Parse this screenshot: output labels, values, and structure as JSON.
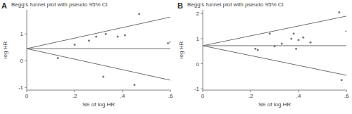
{
  "chart_data": [
    {
      "type": "scatter",
      "title": "Begg's funnel plot with pseudo 95% CI",
      "annotations": [
        "A"
      ],
      "x_label": "SE of log HR",
      "y_label": "log HR",
      "xlim": [
        0,
        0.6
      ],
      "xticks": [
        0,
        {
          "value": 0.2,
          "label": ".2"
        },
        {
          "value": 0.4,
          "label": ".4"
        },
        {
          "value": 0.6,
          "label": ".6"
        }
      ],
      "ylim": [
        -1.1,
        1.9
      ],
      "yticks": [
        -1,
        0,
        1
      ],
      "series": [
        {
          "type": "scatter",
          "color": "#7a7a7a",
          "marker": "circle",
          "x": [
            0.13,
            0.2,
            0.26,
            0.29,
            0.32,
            0.33,
            0.38,
            0.41,
            0.45,
            0.47,
            0.59,
            0.6
          ],
          "values": [
            0.1,
            0.6,
            0.75,
            0.9,
            -0.6,
            1.0,
            0.9,
            0.95,
            -0.9,
            1.75,
            0.65,
            0.7
          ]
        },
        {
          "type": "line",
          "color": "#6e6e6e",
          "line_style": "solid",
          "x": [
            0,
            0.6
          ],
          "values": [
            0.45,
            0.45
          ]
        },
        {
          "type": "line",
          "color": "#6e6e6e",
          "line_style": "solid",
          "x": [
            0,
            0.6
          ],
          "values": [
            0.45,
            1.63
          ]
        },
        {
          "type": "line",
          "color": "#6e6e6e",
          "line_style": "solid",
          "x": [
            0,
            0.6
          ],
          "values": [
            0.45,
            -0.73
          ]
        }
      ]
    },
    {
      "type": "scatter",
      "title": "Begg's funnel plot with pseudo 95% CI",
      "annotations": [
        "B"
      ],
      "x_label": "SE of log HR",
      "y_label": "log HR",
      "xlim": [
        0,
        0.6
      ],
      "xticks": [
        0,
        {
          "value": 0.2,
          "label": ".2"
        },
        {
          "value": 0.4,
          "label": ".4"
        },
        {
          "value": 0.6,
          "label": ".6"
        }
      ],
      "ylim": [
        -1.05,
        2.15
      ],
      "yticks": [
        -1,
        0,
        1,
        2
      ],
      "series": [
        {
          "type": "scatter",
          "color": "#7a7a7a",
          "marker": "circle",
          "x": [
            0.22,
            0.23,
            0.28,
            0.3,
            0.33,
            0.37,
            0.38,
            0.39,
            0.4,
            0.42,
            0.45,
            0.57,
            0.58,
            0.6
          ],
          "values": [
            0.6,
            0.55,
            1.2,
            0.7,
            0.8,
            1.0,
            1.2,
            0.6,
            0.95,
            1.05,
            0.85,
            2.05,
            -0.65,
            1.3
          ]
        },
        {
          "type": "line",
          "color": "#6e6e6e",
          "line_style": "solid",
          "x": [
            0,
            0.6
          ],
          "values": [
            0.72,
            0.72
          ]
        },
        {
          "type": "line",
          "color": "#6e6e6e",
          "line_style": "solid",
          "x": [
            0,
            0.6
          ],
          "values": [
            0.72,
            1.9
          ]
        },
        {
          "type": "line",
          "color": "#6e6e6e",
          "line_style": "solid",
          "x": [
            0,
            0.6
          ],
          "values": [
            0.72,
            -0.46
          ]
        }
      ]
    }
  ]
}
